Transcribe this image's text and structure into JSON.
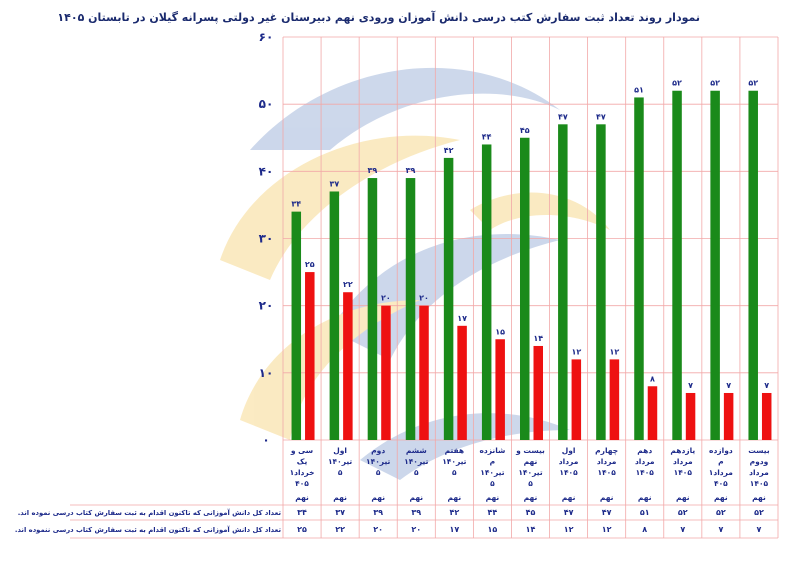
{
  "chart_data": {
    "type": "bar",
    "title": "نمودار روند تعداد ثبت سفارش کتب درسی دانش آموزان ورودی نهم دبیرستان غیر دولتی پسرانه گیلان در تابستان ۱۴۰۵",
    "ylim": [
      0,
      60
    ],
    "yticks": [
      "0",
      "10",
      "20",
      "30",
      "40",
      "50",
      "60"
    ],
    "grid": true,
    "legend": "none",
    "categories": [
      [
        "سی و",
        "یک",
        "خرداد۱",
        "۴۰۵"
      ],
      [
        "اول",
        "تیر۱۴۰",
        "۵"
      ],
      [
        "دوم",
        "تیر۱۴۰",
        "۵"
      ],
      [
        "ششم",
        "تیر۱۴۰",
        "۵"
      ],
      [
        "هفتم",
        "تیر۱۴۰",
        "۵"
      ],
      [
        "شانزده",
        "م",
        "تیر۱۴۰",
        "۵"
      ],
      [
        "بیست و",
        "نهم",
        "تیر۱۴۰",
        "۵"
      ],
      [
        "اول",
        "مرداد",
        "۱۴۰۵"
      ],
      [
        "چهارم",
        "مرداد",
        "۱۴۰۵"
      ],
      [
        "دهم",
        "مرداد",
        "۱۴۰۵"
      ],
      [
        "یازدهم",
        "مرداد",
        "۱۴۰۵"
      ],
      [
        "دوازده",
        "م",
        "مرداد۱",
        "۴۰۵"
      ],
      [
        "بیست",
        "ودوم",
        "مرداد",
        "۱۴۰۵"
      ]
    ],
    "sublabel": "نهم",
    "series": [
      {
        "name": "تعداد کل دانش آموزانی که تاکنون اقدام به ثبت سفارش کتاب درسی نموده اند.",
        "color": "#1a8a1a",
        "values": [
          34,
          37,
          39,
          39,
          42,
          44,
          45,
          47,
          47,
          51,
          52,
          52,
          52
        ],
        "labels": [
          "۳۴",
          "۳۷",
          "۳۹",
          "۳۹",
          "۴۲",
          "۴۴",
          "۴۵",
          "۴۷",
          "۴۷",
          "۵۱",
          "۵۲",
          "۵۲",
          "۵۲"
        ]
      },
      {
        "name": "تعداد کل دانش آموزانی که تاکنون اقدام به ثبت سفارش کتاب درسی ننموده اند.",
        "color": "#ee1111",
        "values": [
          25,
          22,
          20,
          20,
          17,
          15,
          14,
          12,
          12,
          8,
          7,
          7,
          7
        ],
        "labels": [
          "۲۵",
          "۲۲",
          "۲۰",
          "۲۰",
          "۱۷",
          "۱۵",
          "۱۴",
          "۱۲",
          "۱۲",
          "۸",
          "۷",
          "۷",
          "۷"
        ]
      }
    ]
  },
  "ytick_display": [
    "۰",
    "۱۰",
    "۲۰",
    "۳۰",
    "۴۰",
    "۵۰",
    "۶۰"
  ]
}
